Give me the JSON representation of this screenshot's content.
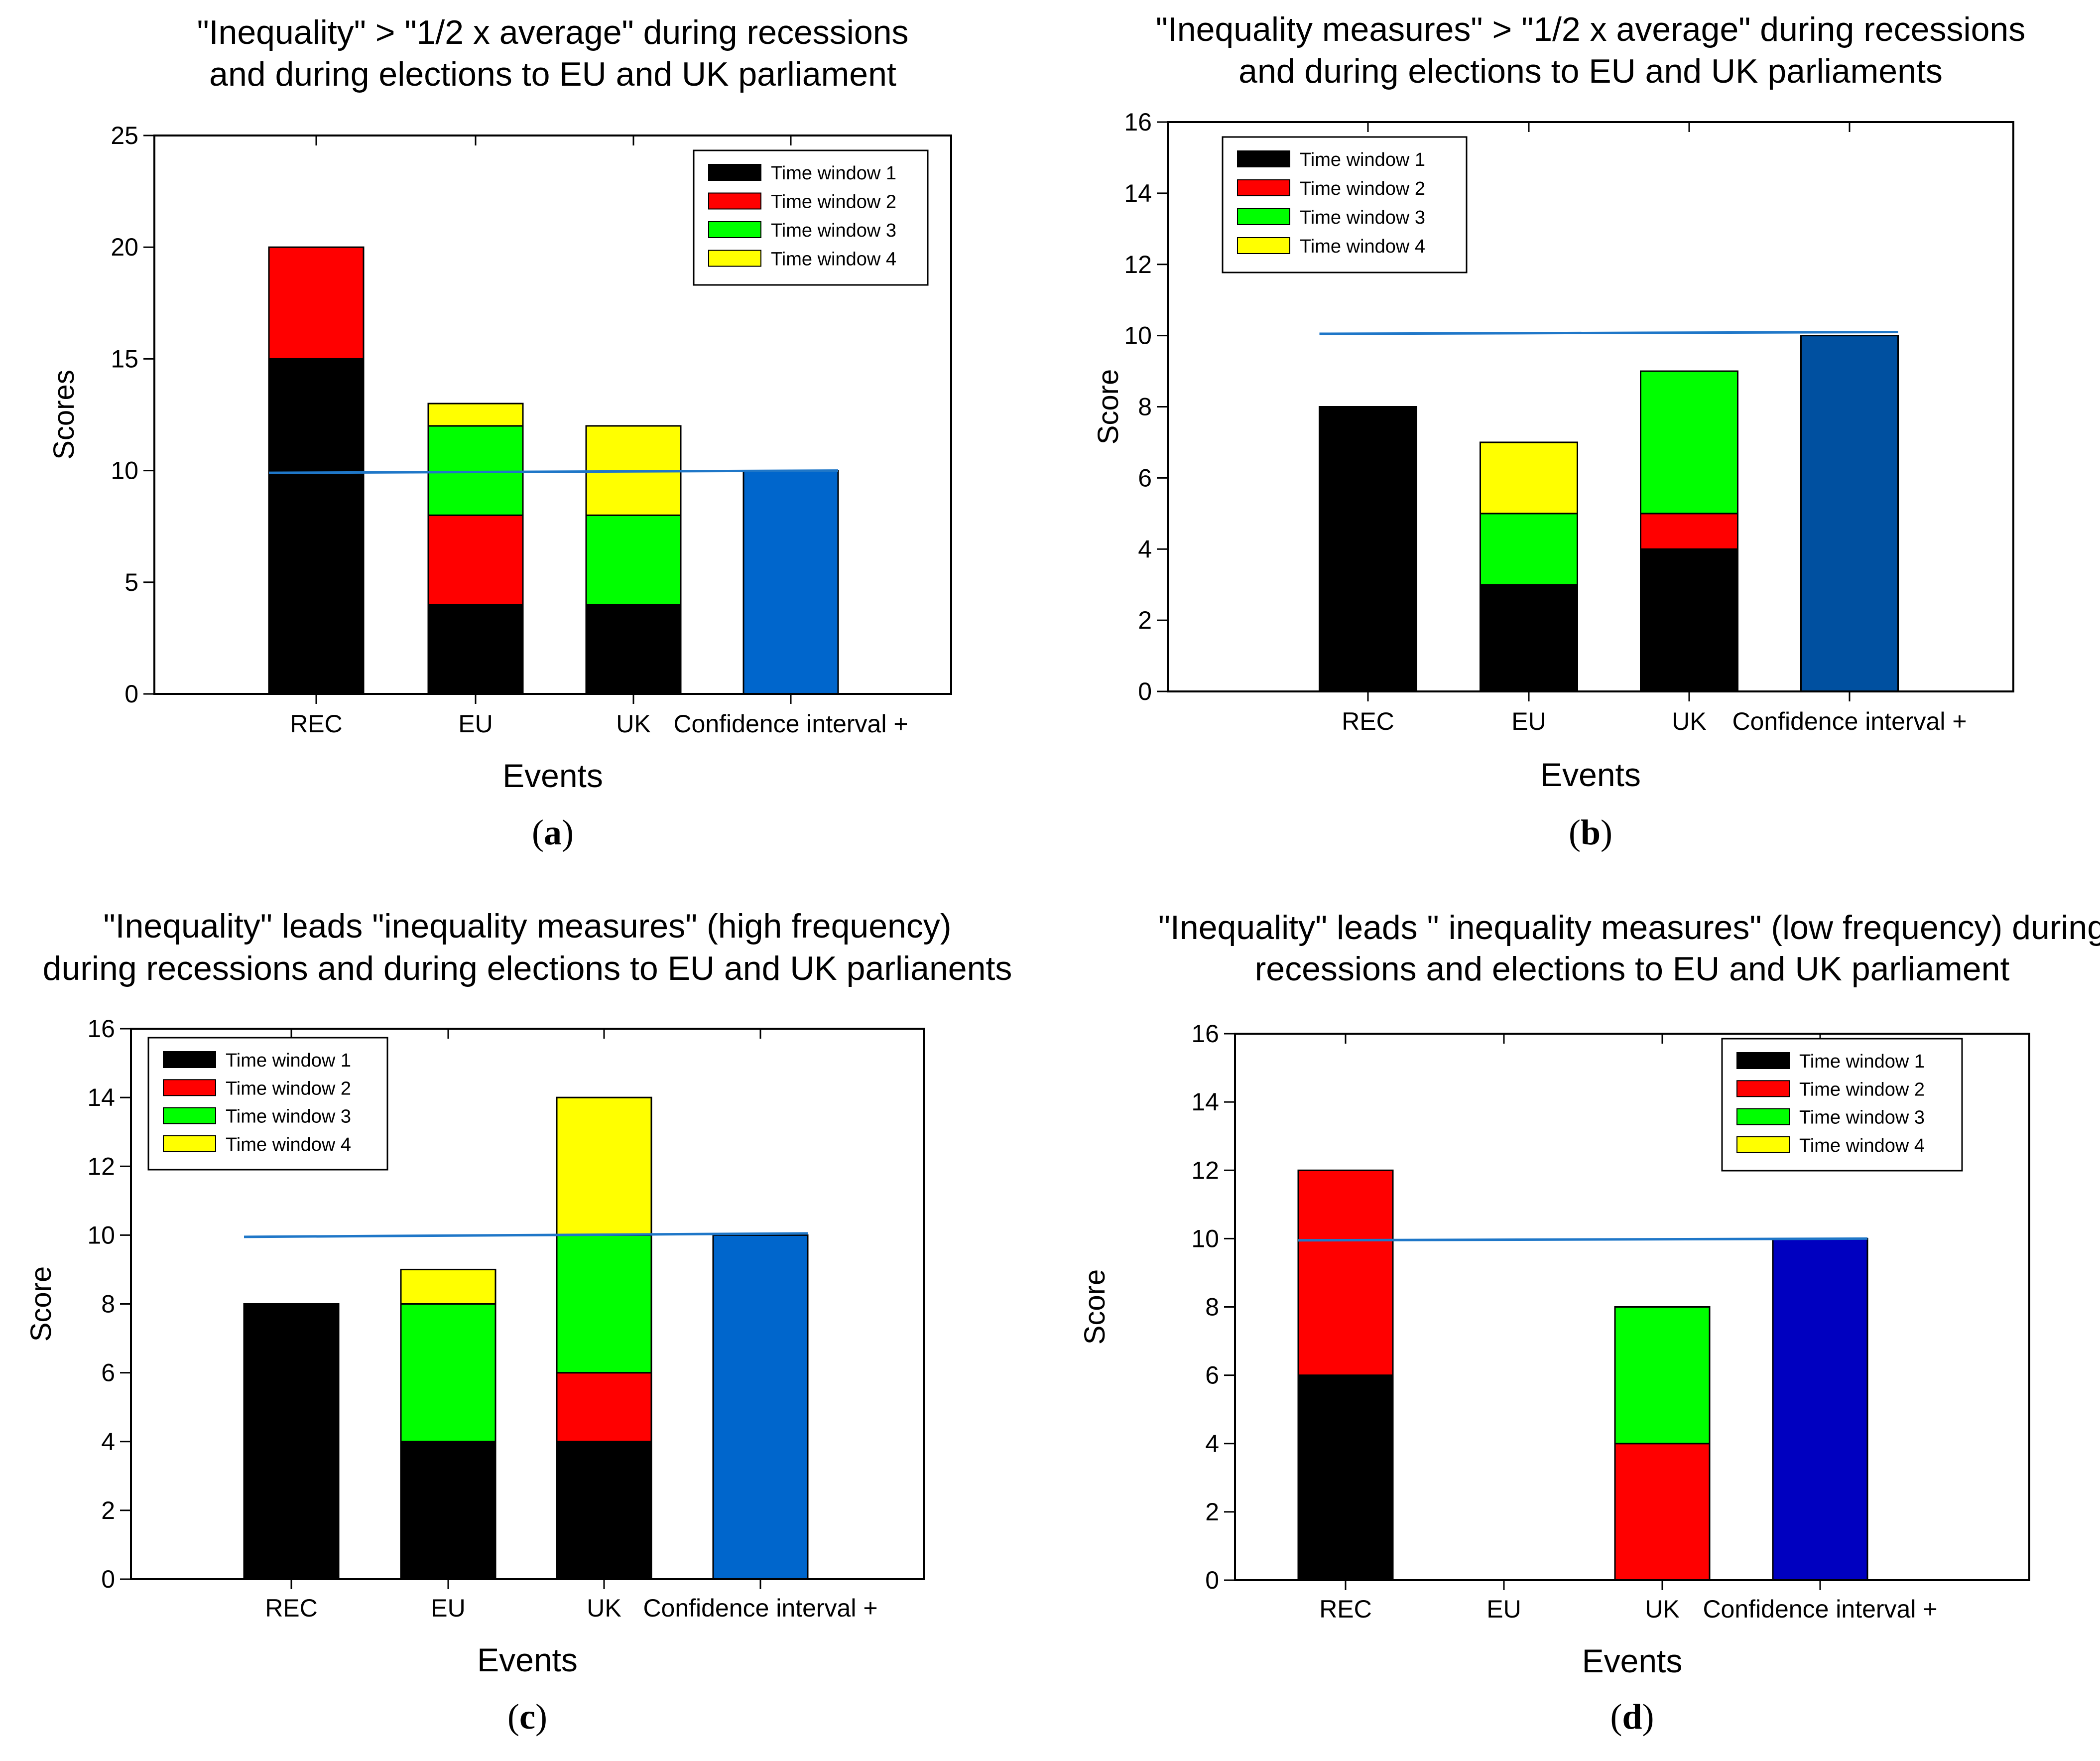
{
  "chart_data": [
    {
      "panel": "a",
      "type": "bar",
      "stacked": true,
      "title_lines": [
        "\"Inequality\" > \"1/2 x average\" during recessions",
        "and during elections to EU and UK parliament"
      ],
      "xlabel": "Events",
      "ylabel": "Scores",
      "ylim": [
        0,
        25
      ],
      "yticks": [
        "0",
        "5",
        "10",
        "15",
        "20",
        "25"
      ],
      "categories": [
        "REC",
        "EU",
        "UK",
        "Confidence interval +"
      ],
      "series": [
        {
          "name": "Time window 1",
          "color": "#000000",
          "values": [
            15,
            4,
            4,
            0
          ]
        },
        {
          "name": "Time window 2",
          "color": "#ff0000",
          "values": [
            5,
            4,
            0,
            0
          ]
        },
        {
          "name": "Time window 3",
          "color": "#00ff00",
          "values": [
            0,
            4,
            4,
            0
          ]
        },
        {
          "name": "Time window 4",
          "color": "#ffff00",
          "values": [
            0,
            1,
            4,
            0
          ]
        }
      ],
      "ci_value": 10,
      "ci_color": "#0066cc",
      "reference_line": {
        "from": 9.9,
        "to": 10.0,
        "color": "#1f77c8"
      },
      "legend_position": "top-right"
    },
    {
      "panel": "b",
      "type": "bar",
      "stacked": true,
      "title_lines": [
        "\"Inequality measures\" > \"1/2 x average\" during recessions",
        "and during elections to EU and UK parliaments"
      ],
      "xlabel": "Events",
      "ylabel": "Score",
      "ylim": [
        0,
        16
      ],
      "yticks": [
        "0",
        "2",
        "4",
        "6",
        "8",
        "10",
        "12",
        "14",
        "16"
      ],
      "categories": [
        "REC",
        "EU",
        "UK",
        "Confidence interval +"
      ],
      "series": [
        {
          "name": "Time window 1",
          "color": "#000000",
          "values": [
            8,
            3,
            4,
            0
          ]
        },
        {
          "name": "Time window 2",
          "color": "#ff0000",
          "values": [
            0,
            0,
            1,
            0
          ]
        },
        {
          "name": "Time window 3",
          "color": "#00ff00",
          "values": [
            0,
            2,
            4,
            0
          ]
        },
        {
          "name": "Time window 4",
          "color": "#ffff00",
          "values": [
            0,
            2,
            0,
            0
          ]
        }
      ],
      "ci_value": 10,
      "ci_color": "#0050a0",
      "reference_line": {
        "from": 10.05,
        "to": 10.1,
        "color": "#1f77c8"
      },
      "legend_position": "top-left"
    },
    {
      "panel": "c",
      "type": "bar",
      "stacked": true,
      "title_lines": [
        "\"Inequality\" leads \"inequality measures\" (high frequency)",
        "during recessions and during elections to EU and UK parlianents"
      ],
      "xlabel": "Events",
      "ylabel": "Score",
      "ylim": [
        0,
        16
      ],
      "yticks": [
        "0",
        "2",
        "4",
        "6",
        "8",
        "10",
        "12",
        "14",
        "16"
      ],
      "categories": [
        "REC",
        "EU",
        "UK",
        "Confidence interval +"
      ],
      "series": [
        {
          "name": "Time window 1",
          "color": "#000000",
          "values": [
            8,
            4,
            4,
            0
          ]
        },
        {
          "name": "Time window 2",
          "color": "#ff0000",
          "values": [
            0,
            0,
            2,
            0
          ]
        },
        {
          "name": "Time window 3",
          "color": "#00ff00",
          "values": [
            0,
            4,
            4,
            0
          ]
        },
        {
          "name": "Time window 4",
          "color": "#ffff00",
          "values": [
            0,
            1,
            4,
            0
          ]
        }
      ],
      "ci_value": 10,
      "ci_color": "#0066cc",
      "reference_line": {
        "from": 9.95,
        "to": 10.05,
        "color": "#1f77c8"
      },
      "legend_position": "top-left"
    },
    {
      "panel": "d",
      "type": "bar",
      "stacked": true,
      "title_lines": [
        "\"Inequality\" leads \" inequality measures\" (low frequency) during",
        "recessions and elections to EU and UK parliament"
      ],
      "xlabel": "Events",
      "ylabel": "Score",
      "ylim": [
        0,
        16
      ],
      "yticks": [
        "0",
        "2",
        "4",
        "6",
        "8",
        "10",
        "12",
        "14",
        "16"
      ],
      "categories": [
        "REC",
        "EU",
        "UK",
        "Confidence interval +"
      ],
      "series": [
        {
          "name": "Time window 1",
          "color": "#000000",
          "values": [
            6,
            0,
            0,
            0
          ]
        },
        {
          "name": "Time window 2",
          "color": "#ff0000",
          "values": [
            6,
            0,
            4,
            0
          ]
        },
        {
          "name": "Time window 3",
          "color": "#00ff00",
          "values": [
            0,
            0,
            4,
            0
          ]
        },
        {
          "name": "Time window 4",
          "color": "#ffff00",
          "values": [
            0,
            0,
            0,
            0
          ]
        }
      ],
      "ci_value": 10,
      "ci_color": "#0000c0",
      "reference_line": {
        "from": 9.95,
        "to": 10.0,
        "color": "#1f77c8"
      },
      "legend_position": "top-right"
    }
  ]
}
